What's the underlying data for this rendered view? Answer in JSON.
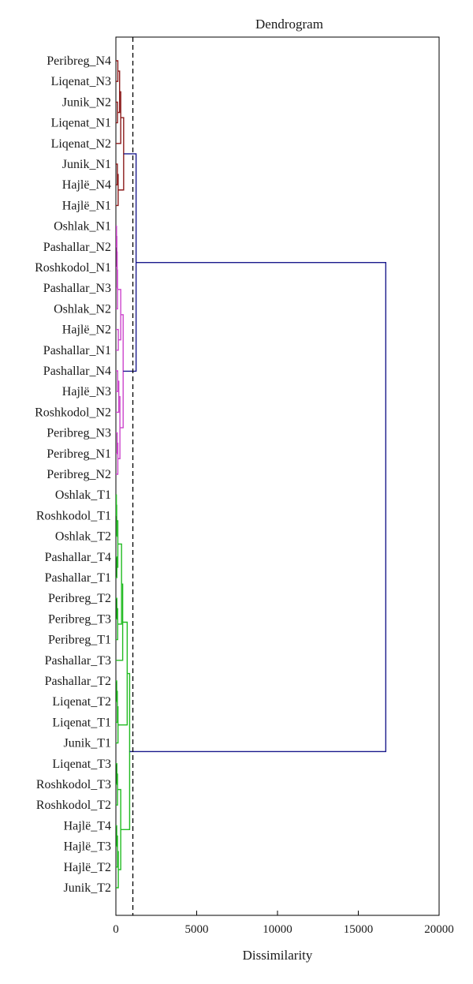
{
  "chart_data": {
    "type": "dendrogram",
    "title": "Dendrogram",
    "xlabel": "Dissimilarity",
    "orientation": "horizontal",
    "xlim": [
      0,
      20000
    ],
    "x_ticks": [
      0,
      5000,
      10000,
      15000,
      20000
    ],
    "x_tick_labels": [
      "0",
      "5000",
      "10000",
      "15000",
      "20000"
    ],
    "cut_line": 1050,
    "grid": false,
    "colors": {
      "cluster_1": "#8b1a1a",
      "cluster_2": "#cc44cc",
      "cluster_3": "#22bb22",
      "top_level": "#1a1a8c",
      "cut_line": "#000000",
      "frame": "#000000"
    },
    "leaves": [
      {
        "label": "Peribreg_N4",
        "cluster": 1
      },
      {
        "label": "Liqenat_N3",
        "cluster": 1
      },
      {
        "label": "Junik_N2",
        "cluster": 1
      },
      {
        "label": "Liqenat_N1",
        "cluster": 1
      },
      {
        "label": "Liqenat_N2",
        "cluster": 1
      },
      {
        "label": "Junik_N1",
        "cluster": 1
      },
      {
        "label": "Hajlë_N4",
        "cluster": 1
      },
      {
        "label": "Hajlë_N1",
        "cluster": 1
      },
      {
        "label": "Oshlak_N1",
        "cluster": 2
      },
      {
        "label": "Pashallar_N2",
        "cluster": 2
      },
      {
        "label": "Roshkodol_N1",
        "cluster": 2
      },
      {
        "label": "Pashallar_N3",
        "cluster": 2
      },
      {
        "label": "Oshlak_N2",
        "cluster": 2
      },
      {
        "label": "Hajlë_N2",
        "cluster": 2
      },
      {
        "label": "Pashallar_N1",
        "cluster": 2
      },
      {
        "label": "Pashallar_N4",
        "cluster": 2
      },
      {
        "label": "Hajlë_N3",
        "cluster": 2
      },
      {
        "label": "Roshkodol_N2",
        "cluster": 2
      },
      {
        "label": "Peribreg_N3",
        "cluster": 2
      },
      {
        "label": "Peribreg_N1",
        "cluster": 2
      },
      {
        "label": "Peribreg_N2",
        "cluster": 2
      },
      {
        "label": "Oshlak_T1",
        "cluster": 3
      },
      {
        "label": "Roshkodol_T1",
        "cluster": 3
      },
      {
        "label": "Oshlak_T2",
        "cluster": 3
      },
      {
        "label": "Pashallar_T4",
        "cluster": 3
      },
      {
        "label": "Pashallar_T1",
        "cluster": 3
      },
      {
        "label": "Peribreg_T2",
        "cluster": 3
      },
      {
        "label": "Peribreg_T3",
        "cluster": 3
      },
      {
        "label": "Peribreg_T1",
        "cluster": 3
      },
      {
        "label": "Pashallar_T3",
        "cluster": 3
      },
      {
        "label": "Pashallar_T2",
        "cluster": 3
      },
      {
        "label": "Liqenat_T2",
        "cluster": 3
      },
      {
        "label": "Liqenat_T1",
        "cluster": 3
      },
      {
        "label": "Junik_T1",
        "cluster": 3
      },
      {
        "label": "Liqenat_T3",
        "cluster": 3
      },
      {
        "label": "Roshkodol_T3",
        "cluster": 3
      },
      {
        "label": "Roshkodol_T2",
        "cluster": 3
      },
      {
        "label": "Hajlë_T4",
        "cluster": 3
      },
      {
        "label": "Hajlë_T3",
        "cluster": 3
      },
      {
        "label": "Hajlë_T2",
        "cluster": 3
      },
      {
        "label": "Junik_T2",
        "cluster": 3
      }
    ],
    "merges": [
      {
        "a": "L0",
        "b": "L1",
        "height": 120,
        "cluster": 1
      },
      {
        "a": "L2",
        "b": "L3",
        "height": 100,
        "cluster": 1
      },
      {
        "a": "M0",
        "b": "M1",
        "height": 230,
        "cluster": 1
      },
      {
        "a": "M2",
        "b": "L4",
        "height": 300,
        "cluster": 1
      },
      {
        "a": "L5",
        "b": "L6",
        "height": 90,
        "cluster": 1
      },
      {
        "a": "M4",
        "b": "L7",
        "height": 140,
        "cluster": 1
      },
      {
        "a": "M3",
        "b": "M5",
        "height": 480,
        "cluster": 1
      },
      {
        "a": "L8",
        "b": "L9",
        "height": 40,
        "cluster": 2
      },
      {
        "a": "M7",
        "b": "L10",
        "height": 60,
        "cluster": 2
      },
      {
        "a": "M8",
        "b": "L11",
        "height": 80,
        "cluster": 2
      },
      {
        "a": "M9",
        "b": "L12",
        "height": 100,
        "cluster": 2
      },
      {
        "a": "L13",
        "b": "L14",
        "height": 150,
        "cluster": 2
      },
      {
        "a": "M10",
        "b": "M11",
        "height": 300,
        "cluster": 2
      },
      {
        "a": "L15",
        "b": "L16",
        "height": 110,
        "cluster": 2
      },
      {
        "a": "M13",
        "b": "L17",
        "height": 180,
        "cluster": 2
      },
      {
        "a": "L18",
        "b": "L19",
        "height": 80,
        "cluster": 2
      },
      {
        "a": "M15",
        "b": "L20",
        "height": 120,
        "cluster": 2
      },
      {
        "a": "M14",
        "b": "M16",
        "height": 250,
        "cluster": 2
      },
      {
        "a": "M12",
        "b": "M17",
        "height": 450,
        "cluster": 2
      },
      {
        "a": "M6",
        "b": "M18",
        "height": 1250,
        "cluster": 0
      },
      {
        "a": "L21",
        "b": "L22",
        "height": 30,
        "cluster": 3
      },
      {
        "a": "M20",
        "b": "L23",
        "height": 50,
        "cluster": 3
      },
      {
        "a": "L24",
        "b": "L25",
        "height": 60,
        "cluster": 3
      },
      {
        "a": "M21",
        "b": "M22",
        "height": 120,
        "cluster": 3
      },
      {
        "a": "L26",
        "b": "L27",
        "height": 60,
        "cluster": 3
      },
      {
        "a": "M24",
        "b": "L28",
        "height": 110,
        "cluster": 3
      },
      {
        "a": "M23",
        "b": "M25",
        "height": 350,
        "cluster": 3
      },
      {
        "a": "M26",
        "b": "L29",
        "height": 420,
        "cluster": 3
      },
      {
        "a": "L30",
        "b": "L31",
        "height": 50,
        "cluster": 3
      },
      {
        "a": "M28",
        "b": "L32",
        "height": 90,
        "cluster": 3
      },
      {
        "a": "M29",
        "b": "L33",
        "height": 130,
        "cluster": 3
      },
      {
        "a": "M27",
        "b": "M30",
        "height": 700,
        "cluster": 3
      },
      {
        "a": "L34",
        "b": "L35",
        "height": 60,
        "cluster": 3
      },
      {
        "a": "M32",
        "b": "L36",
        "height": 100,
        "cluster": 3
      },
      {
        "a": "L37",
        "b": "L38",
        "height": 50,
        "cluster": 3
      },
      {
        "a": "M34",
        "b": "L39",
        "height": 100,
        "cluster": 3
      },
      {
        "a": "M35",
        "b": "L40",
        "height": 150,
        "cluster": 3
      },
      {
        "a": "M33",
        "b": "M36",
        "height": 300,
        "cluster": 3
      },
      {
        "a": "M31",
        "b": "M37",
        "height": 850,
        "cluster": 3
      },
      {
        "a": "M19",
        "b": "M38",
        "height": 16700,
        "cluster": 0
      }
    ]
  }
}
